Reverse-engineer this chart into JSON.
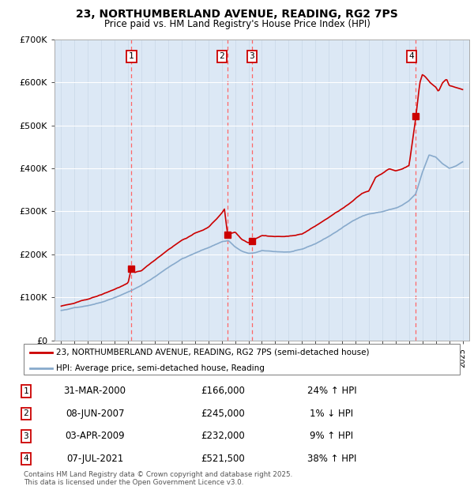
{
  "title": "23, NORTHUMBERLAND AVENUE, READING, RG2 7PS",
  "subtitle": "Price paid vs. HM Land Registry's House Price Index (HPI)",
  "xlim": [
    1994.5,
    2025.5
  ],
  "ylim": [
    0,
    700000
  ],
  "yticks": [
    0,
    100000,
    200000,
    300000,
    400000,
    500000,
    600000,
    700000
  ],
  "ytick_labels": [
    "£0",
    "£100K",
    "£200K",
    "£300K",
    "£400K",
    "£500K",
    "£600K",
    "£700K"
  ],
  "sale_dates": [
    2000.25,
    2007.44,
    2009.26,
    2021.51
  ],
  "sale_prices": [
    166000,
    245000,
    232000,
    521500
  ],
  "sale_labels": [
    "1",
    "2",
    "3",
    "4"
  ],
  "sale_numbers": [
    {
      "label": "1",
      "date_str": "31-MAR-2000",
      "price": "£166,000",
      "hpi": "24% ↑ HPI"
    },
    {
      "label": "2",
      "date_str": "08-JUN-2007",
      "price": "£245,000",
      "hpi": "1% ↓ HPI"
    },
    {
      "label": "3",
      "date_str": "03-APR-2009",
      "price": "£232,000",
      "hpi": "9% ↑ HPI"
    },
    {
      "label": "4",
      "date_str": "07-JUL-2021",
      "price": "£521,500",
      "hpi": "38% ↑ HPI"
    }
  ],
  "legend_line1": "23, NORTHUMBERLAND AVENUE, READING, RG2 7PS (semi-detached house)",
  "legend_line2": "HPI: Average price, semi-detached house, Reading",
  "footer": "Contains HM Land Registry data © Crown copyright and database right 2025.\nThis data is licensed under the Open Government Licence v3.0.",
  "property_color": "#cc0000",
  "hpi_color": "#88aacc",
  "fig_bg": "#ffffff",
  "plot_bg": "#dce8f5"
}
